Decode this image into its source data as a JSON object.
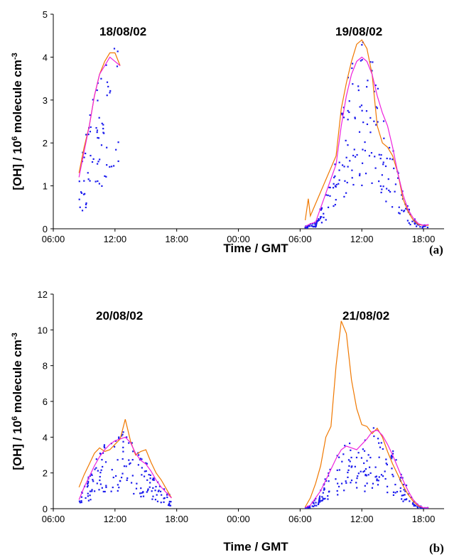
{
  "chart_data": [
    {
      "type": "line",
      "panel": "(a)",
      "xlabel": "Time / GMT",
      "ylabel_main": "[OH] / 10",
      "ylabel_sup": "6",
      "ylabel_mid": " molecule cm",
      "ylabel_sup2": "-3",
      "xticks": [
        "06:00",
        "12:00",
        "18:00",
        "00:00",
        "06:00",
        "12:00",
        "18:00"
      ],
      "yticks": [
        "0",
        "1",
        "2",
        "3",
        "4",
        "5"
      ],
      "ylim": [
        0,
        5
      ],
      "xlim_hours": [
        6,
        44
      ],
      "annotations": [
        "18/08/02",
        "19/08/02"
      ],
      "colors": {
        "orange": "#f07800",
        "magenta": "#ee22dd",
        "blue": "#1a1aee"
      },
      "series": [
        {
          "color": "#f07800",
          "values": [
            [
              8.5,
              1.3
            ],
            [
              9,
              1.9
            ],
            [
              9.5,
              2.4
            ],
            [
              10,
              3.1
            ],
            [
              10.5,
              3.6
            ],
            [
              11,
              3.9
            ],
            [
              11.5,
              4.1
            ],
            [
              12,
              4.1
            ],
            [
              12.5,
              3.8
            ],
            [
              30.5,
              0.2
            ],
            [
              30.8,
              0.7
            ],
            [
              31,
              0.3
            ],
            [
              33.5,
              1.7
            ],
            [
              34,
              2.8
            ],
            [
              34.5,
              3.4
            ],
            [
              35,
              3.9
            ],
            [
              35.5,
              4.3
            ],
            [
              36,
              4.4
            ],
            [
              36.5,
              4.2
            ],
            [
              37,
              3.6
            ],
            [
              37.5,
              2.4
            ],
            [
              38,
              2.0
            ],
            [
              38.5,
              1.9
            ],
            [
              39,
              1.7
            ],
            [
              39.5,
              1.3
            ],
            [
              40,
              0.7
            ],
            [
              40.5,
              0.4
            ],
            [
              41,
              0.2
            ],
            [
              41.5,
              0.1
            ],
            [
              42,
              0.08
            ],
            [
              42.5,
              0.08
            ]
          ]
        },
        {
          "color": "#ee22dd",
          "values": [
            [
              8.5,
              1.2
            ],
            [
              9,
              1.8
            ],
            [
              9.5,
              2.4
            ],
            [
              10,
              3.1
            ],
            [
              10.5,
              3.6
            ],
            [
              11,
              3.8
            ],
            [
              11.5,
              4.0
            ],
            [
              12,
              3.9
            ],
            [
              12.5,
              3.8
            ],
            [
              30.5,
              0.05
            ],
            [
              31,
              0.12
            ],
            [
              31.5,
              0.15
            ],
            [
              33.5,
              1.5
            ],
            [
              34,
              2.4
            ],
            [
              34.5,
              3.1
            ],
            [
              35,
              3.6
            ],
            [
              35.5,
              3.9
            ],
            [
              36,
              4.0
            ],
            [
              36.5,
              3.9
            ],
            [
              37,
              3.6
            ],
            [
              37.5,
              3.1
            ],
            [
              38,
              2.7
            ],
            [
              38.5,
              2.4
            ],
            [
              39,
              1.9
            ],
            [
              39.5,
              1.3
            ],
            [
              40,
              0.8
            ],
            [
              40.5,
              0.45
            ],
            [
              41,
              0.25
            ],
            [
              41.5,
              0.12
            ],
            [
              42,
              0.08
            ],
            [
              42.5,
              0.1
            ]
          ]
        }
      ]
    },
    {
      "type": "line",
      "panel": "(b)",
      "xlabel": "Time / GMT",
      "ylabel_main": "[OH] / 10",
      "ylabel_sup": "6",
      "ylabel_mid": " molecule cm",
      "ylabel_sup2": "-3",
      "xticks": [
        "06:00",
        "12:00",
        "18:00",
        "00:00",
        "06:00",
        "12:00",
        "18:00"
      ],
      "yticks": [
        "0",
        "2",
        "4",
        "6",
        "8",
        "10",
        "12"
      ],
      "ylim": [
        0,
        12
      ],
      "xlim_hours": [
        6,
        44
      ],
      "annotations": [
        "20/08/02",
        "21/08/02"
      ],
      "colors": {
        "orange": "#f07800",
        "magenta": "#ee22dd",
        "blue": "#1a1aee"
      },
      "series": [
        {
          "color": "#f07800",
          "values": [
            [
              8.5,
              1.2
            ],
            [
              9,
              1.9
            ],
            [
              9.5,
              2.5
            ],
            [
              10,
              3.1
            ],
            [
              10.5,
              3.4
            ],
            [
              11,
              3.2
            ],
            [
              11.5,
              3.3
            ],
            [
              12,
              3.6
            ],
            [
              12.5,
              3.9
            ],
            [
              13,
              5.0
            ],
            [
              13.5,
              3.8
            ],
            [
              14,
              3.0
            ],
            [
              14.5,
              3.2
            ],
            [
              15,
              3.3
            ],
            [
              15.5,
              2.6
            ],
            [
              16,
              2.0
            ],
            [
              16.5,
              1.6
            ],
            [
              17,
              1.1
            ],
            [
              17.5,
              0.6
            ],
            [
              30.5,
              0.1
            ],
            [
              31,
              0.6
            ],
            [
              31.5,
              1.4
            ],
            [
              32,
              2.4
            ],
            [
              32.5,
              4.0
            ],
            [
              33,
              4.6
            ],
            [
              33.5,
              8.0
            ],
            [
              34,
              10.5
            ],
            [
              34.5,
              9.8
            ],
            [
              35,
              7.2
            ],
            [
              35.5,
              5.6
            ],
            [
              36,
              4.7
            ],
            [
              36.5,
              4.6
            ],
            [
              37,
              4.2
            ],
            [
              37.5,
              4.5
            ],
            [
              38,
              4.0
            ],
            [
              38.5,
              3.2
            ],
            [
              39,
              2.5
            ],
            [
              39.5,
              1.9
            ],
            [
              40,
              1.3
            ],
            [
              40.5,
              0.8
            ],
            [
              41,
              0.4
            ],
            [
              41.5,
              0.15
            ],
            [
              42,
              0.05
            ],
            [
              42.5,
              0.05
            ]
          ]
        },
        {
          "color": "#ee22dd",
          "values": [
            [
              8.5,
              0.5
            ],
            [
              9,
              1.2
            ],
            [
              9.5,
              1.8
            ],
            [
              10,
              2.4
            ],
            [
              10.5,
              2.9
            ],
            [
              11,
              3.3
            ],
            [
              11.5,
              3.6
            ],
            [
              12,
              3.8
            ],
            [
              12.5,
              3.9
            ],
            [
              13,
              4.0
            ],
            [
              13.5,
              3.7
            ],
            [
              14,
              3.1
            ],
            [
              14.5,
              2.7
            ],
            [
              15,
              2.5
            ],
            [
              15.5,
              2.1
            ],
            [
              16,
              1.6
            ],
            [
              16.5,
              1.2
            ],
            [
              17,
              0.9
            ],
            [
              17.5,
              0.6
            ],
            [
              30.5,
              0.05
            ],
            [
              31,
              0.2
            ],
            [
              31.5,
              0.6
            ],
            [
              32,
              1.0
            ],
            [
              32.5,
              1.6
            ],
            [
              33,
              2.2
            ],
            [
              33.5,
              2.8
            ],
            [
              34,
              3.3
            ],
            [
              34.5,
              3.5
            ],
            [
              35,
              3.4
            ],
            [
              35.5,
              3.3
            ],
            [
              36,
              3.6
            ],
            [
              36.5,
              3.9
            ],
            [
              37,
              4.3
            ],
            [
              37.5,
              4.4
            ],
            [
              38,
              4.1
            ],
            [
              38.5,
              3.6
            ],
            [
              39,
              3.0
            ],
            [
              39.5,
              2.3
            ],
            [
              40,
              1.6
            ],
            [
              40.5,
              1.0
            ],
            [
              41,
              0.5
            ],
            [
              41.5,
              0.2
            ],
            [
              42,
              0.05
            ],
            [
              42.5,
              0.05
            ]
          ]
        }
      ]
    }
  ]
}
